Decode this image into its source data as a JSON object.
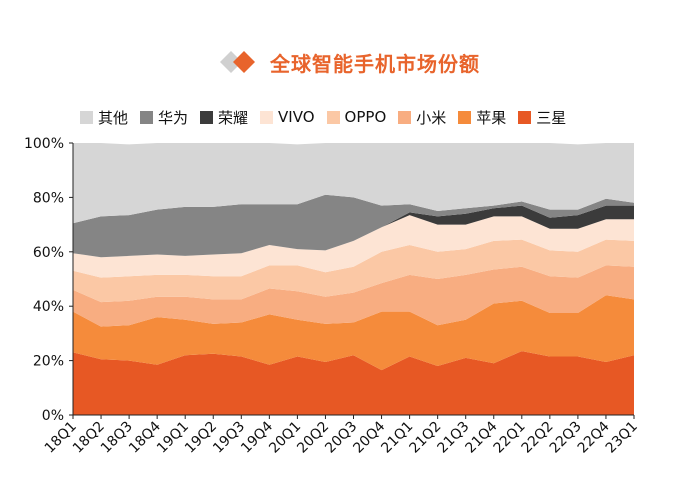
{
  "title": "全球智能手机市场份额",
  "colors": {
    "accent": "#e8642c",
    "title_icon_left": "#d0d0d0",
    "title_icon_right": "#e8642c",
    "axis": "#222222"
  },
  "chart_data": {
    "type": "area",
    "stacked": true,
    "title": "全球智能手机市场份额",
    "xlabel": "",
    "ylabel": "",
    "ylim": [
      0,
      100
    ],
    "yticks": [
      "0%",
      "20%",
      "40%",
      "60%",
      "80%",
      "100%"
    ],
    "legend_position": "top",
    "grid": false,
    "categories": [
      "18Q1",
      "18Q2",
      "18Q3",
      "18Q4",
      "19Q1",
      "19Q2",
      "19Q3",
      "19Q4",
      "20Q1",
      "20Q2",
      "20Q3",
      "20Q4",
      "21Q1",
      "21Q2",
      "21Q3",
      "21Q4",
      "22Q1",
      "22Q2",
      "22Q3",
      "22Q4",
      "23Q1"
    ],
    "series": [
      {
        "name": "三星",
        "color": "#e75824",
        "values": [
          23,
          20.5,
          20,
          18.5,
          22,
          22.5,
          21.5,
          18.5,
          21.5,
          19.5,
          22,
          16.5,
          21.5,
          18,
          21,
          19,
          23.5,
          21.5,
          21.5,
          19.5,
          22
        ]
      },
      {
        "name": "苹果",
        "color": "#f58b3b",
        "values": [
          15,
          12,
          13,
          17.5,
          13,
          11,
          12.5,
          18.5,
          13.5,
          14,
          12,
          21.5,
          16.5,
          15,
          14,
          22,
          18.5,
          16,
          16,
          24.5,
          20.5
        ]
      },
      {
        "name": "小米",
        "color": "#f8ad81",
        "values": [
          8,
          9,
          9,
          7.5,
          8.5,
          9,
          8.5,
          9.5,
          10.5,
          10,
          11,
          10.5,
          13.5,
          17,
          16.5,
          12.5,
          12.5,
          13.5,
          13,
          11,
          12
        ]
      },
      {
        "name": "OPPO",
        "color": "#fbc8a5",
        "values": [
          7,
          9,
          9,
          8,
          8,
          8.5,
          8.5,
          8.5,
          9.5,
          9,
          9.5,
          11.5,
          11,
          10,
          9.5,
          10.5,
          10,
          9.5,
          9.5,
          9.5,
          9.5
        ]
      },
      {
        "name": "VIVO",
        "color": "#fde4d4",
        "values": [
          6.5,
          7.5,
          7.5,
          7.5,
          7,
          8,
          8.5,
          7.5,
          6,
          8,
          9.5,
          9,
          11,
          10,
          9,
          9,
          8.5,
          8,
          8.5,
          7.5,
          8
        ]
      },
      {
        "name": "荣耀",
        "color": "#3b3b3b",
        "values": [
          0,
          0,
          0,
          0,
          0,
          0,
          0,
          0,
          0,
          0,
          0,
          0,
          1,
          3,
          4,
          3,
          4,
          4,
          5,
          5,
          5
        ]
      },
      {
        "name": "华为",
        "color": "#858585",
        "values": [
          11,
          15,
          15,
          16.5,
          18,
          17.5,
          18,
          15,
          16.5,
          20.5,
          16,
          8,
          3,
          2,
          2,
          1,
          1.5,
          3,
          2,
          2.5,
          1
        ]
      },
      {
        "name": "其他",
        "color": "#d6d6d6",
        "values": [
          29.5,
          27,
          26,
          24.5,
          23.5,
          23.5,
          22.5,
          22.5,
          22,
          19,
          20,
          23,
          22.5,
          25,
          24,
          23,
          21.5,
          24.5,
          24,
          20.5,
          22
        ]
      }
    ]
  }
}
